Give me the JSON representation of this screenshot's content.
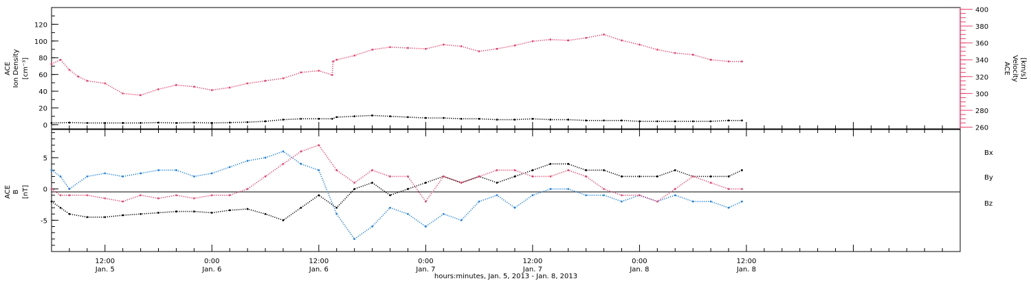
{
  "colors": {
    "density": "#000000",
    "velocity": "#e8416b",
    "bx": "#000000",
    "by": "#1c7fe0",
    "bz": "#e8416b"
  },
  "xaxis": {
    "caption": "hours:minutes, Jan.  5, 2013 - Jan.  8, 2013",
    "range_hours": [
      6,
      108
    ],
    "ticks": [
      {
        "h": 12,
        "time": "12:00",
        "date": "Jan. 5"
      },
      {
        "h": 24,
        "time": "0:00",
        "date": "Jan. 6"
      },
      {
        "h": 36,
        "time": "12:00",
        "date": "Jan. 6"
      },
      {
        "h": 48,
        "time": "0:00",
        "date": "Jan. 7"
      },
      {
        "h": 60,
        "time": "12:00",
        "date": "Jan. 7"
      },
      {
        "h": 72,
        "time": "0:00",
        "date": "Jan. 8"
      },
      {
        "h": 84,
        "time": "12:00",
        "date": "Jan. 8"
      }
    ]
  },
  "chart_data": [
    {
      "type": "scatter",
      "panel": "top",
      "left_axis": {
        "label_line1": "ACE",
        "label_line2": "Ion Density",
        "units": "[cm⁻³]",
        "ylim": [
          -5,
          140
        ],
        "ticks": [
          "0",
          "20",
          "40",
          "60",
          "80",
          "100",
          "120"
        ]
      },
      "right_axis": {
        "label_line1": "ACE",
        "label_line2": "Velocity",
        "units": "[km/s]",
        "ylim": [
          258,
          402
        ],
        "ticks": [
          "260",
          "280",
          "300",
          "320",
          "340",
          "360",
          "380",
          "400"
        ]
      },
      "series": [
        {
          "key": "density",
          "axis": "left",
          "x": [
            6,
            8,
            10,
            12,
            14,
            16,
            18,
            20,
            22,
            24,
            26,
            28,
            30,
            32,
            34,
            36,
            37.5,
            38,
            40,
            42,
            44,
            46,
            48,
            50,
            52,
            54,
            56,
            58,
            60,
            62,
            64,
            66,
            68,
            70,
            72,
            74,
            76,
            78,
            80,
            82,
            83.5
          ],
          "y": [
            2,
            2.5,
            2,
            2,
            2,
            2,
            2.5,
            2,
            2.5,
            2,
            2.5,
            3,
            4,
            6,
            7,
            7,
            7,
            9,
            10,
            11,
            10,
            9,
            8,
            8,
            7,
            7,
            6,
            6,
            7,
            6,
            6,
            5,
            5,
            5,
            4,
            4,
            4,
            4,
            4,
            5,
            5
          ]
        },
        {
          "key": "velocity",
          "axis": "right",
          "x": [
            6,
            7,
            8,
            9,
            10,
            12,
            14,
            16,
            18,
            20,
            22,
            24,
            26,
            28,
            30,
            32,
            34,
            36,
            37.5,
            37.6,
            38,
            40,
            42,
            44,
            46,
            48,
            50,
            52,
            54,
            56,
            58,
            60,
            62,
            64,
            66,
            68,
            70,
            72,
            74,
            76,
            78,
            80,
            82,
            83.5
          ],
          "y": [
            335,
            340,
            328,
            320,
            315,
            312,
            300,
            298,
            305,
            310,
            308,
            304,
            307,
            312,
            315,
            318,
            325,
            327,
            322,
            338,
            340,
            345,
            352,
            355,
            354,
            353,
            358,
            356,
            350,
            353,
            357,
            362,
            364,
            363,
            366,
            370,
            363,
            358,
            352,
            348,
            346,
            340,
            338,
            338
          ]
        }
      ]
    },
    {
      "type": "scatter",
      "panel": "bottom",
      "axis": {
        "label_line1": "ACE",
        "label_line2": "B",
        "units": "[nT]",
        "ylim": [
          -10,
          9.5
        ],
        "ticks": [
          "-5",
          "0",
          "5"
        ]
      },
      "legend": {
        "placement": "right",
        "entries": [
          "Bx",
          "By",
          "Bz"
        ]
      },
      "series": [
        {
          "key": "bx",
          "x": [
            6,
            7,
            8,
            10,
            12,
            14,
            16,
            18,
            20,
            22,
            24,
            26,
            28,
            30,
            32,
            34,
            36,
            38,
            40,
            42,
            44,
            46,
            48,
            50,
            52,
            54,
            56,
            58,
            60,
            62,
            64,
            66,
            68,
            70,
            72,
            74,
            76,
            78,
            80,
            82,
            83.5
          ],
          "y": [
            -2,
            -3,
            -4,
            -4.5,
            -4.5,
            -4.2,
            -4,
            -3.8,
            -3.6,
            -3.6,
            -3.8,
            -3.4,
            -3.2,
            -4,
            -5,
            -3,
            -1,
            -3,
            0,
            1,
            -1,
            0,
            1,
            2,
            1,
            2,
            1,
            2,
            3,
            4,
            4,
            3,
            3,
            2,
            2,
            2,
            3,
            2,
            2,
            2,
            3
          ]
        },
        {
          "key": "by",
          "x": [
            6,
            7,
            8,
            10,
            12,
            14,
            16,
            18,
            20,
            22,
            24,
            26,
            28,
            30,
            32,
            34,
            36,
            38,
            40,
            42,
            44,
            46,
            48,
            50,
            52,
            54,
            56,
            58,
            60,
            62,
            64,
            66,
            68,
            70,
            72,
            74,
            76,
            78,
            80,
            82,
            83.5
          ],
          "y": [
            3,
            2,
            0,
            2,
            2.5,
            2,
            2.5,
            3,
            3,
            2,
            2.5,
            3.5,
            4.5,
            5,
            6,
            4,
            3,
            -4,
            -8,
            -6,
            -3,
            -4,
            -6,
            -4,
            -5,
            -2,
            -1,
            -3,
            -1,
            0,
            0,
            -1,
            -1,
            -2,
            -1,
            -2,
            -1,
            -2,
            -2,
            -3,
            -2
          ]
        },
        {
          "key": "bz",
          "x": [
            6,
            7,
            8,
            10,
            12,
            14,
            16,
            18,
            20,
            22,
            24,
            26,
            28,
            30,
            32,
            34,
            36,
            38,
            40,
            42,
            44,
            46,
            48,
            50,
            52,
            54,
            56,
            58,
            60,
            62,
            64,
            66,
            68,
            70,
            72,
            74,
            76,
            78,
            80,
            82,
            83.5
          ],
          "y": [
            0,
            -1,
            -1,
            -1,
            -1.5,
            -2,
            -1,
            -1.5,
            -1,
            -1.5,
            -1,
            -1,
            0,
            2,
            4,
            6,
            7,
            3,
            1,
            3,
            2,
            2,
            -2,
            2,
            1,
            2,
            3,
            3,
            2,
            2,
            3,
            2,
            0,
            -1,
            -1,
            -2,
            0,
            2,
            1,
            0,
            0
          ]
        }
      ]
    }
  ]
}
